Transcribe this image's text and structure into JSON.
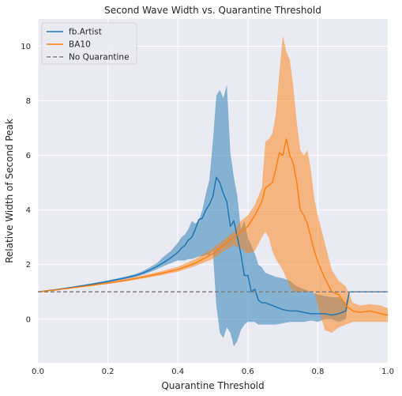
{
  "chart_data": {
    "type": "line",
    "title": "Second Wave Width vs. Quarantine Threshold",
    "xlabel": "Quarantine Threshold",
    "ylabel": "Relative Width of Second Peak",
    "xlim": [
      0.0,
      1.0
    ],
    "ylim": [
      -1.6,
      11.0
    ],
    "xticks": [
      "0.0",
      "0.2",
      "0.4",
      "0.6",
      "0.8",
      "1.0"
    ],
    "yticks": [
      "0",
      "2",
      "4",
      "6",
      "8",
      "10"
    ],
    "grid": true,
    "legend_position": "top-left",
    "background": "#eaeaf2",
    "series": [
      {
        "name": "fb.Artist",
        "color": "#1f77b4",
        "x": [
          0.0,
          0.05,
          0.1,
          0.15,
          0.2,
          0.25,
          0.28,
          0.3,
          0.32,
          0.34,
          0.36,
          0.38,
          0.4,
          0.41,
          0.42,
          0.43,
          0.44,
          0.45,
          0.46,
          0.47,
          0.48,
          0.49,
          0.5,
          0.51,
          0.52,
          0.53,
          0.54,
          0.55,
          0.56,
          0.57,
          0.58,
          0.59,
          0.6,
          0.61,
          0.62,
          0.63,
          0.64,
          0.65,
          0.66,
          0.68,
          0.7,
          0.72,
          0.74,
          0.76,
          0.78,
          0.8,
          0.82,
          0.84,
          0.86,
          0.88,
          0.89,
          0.9,
          0.95,
          1.0
        ],
        "y": [
          1.0,
          1.08,
          1.17,
          1.27,
          1.38,
          1.51,
          1.6,
          1.69,
          1.8,
          1.93,
          2.08,
          2.25,
          2.45,
          2.6,
          2.7,
          2.9,
          3.0,
          3.3,
          3.65,
          3.7,
          4.0,
          4.2,
          4.5,
          5.2,
          5.0,
          4.6,
          4.3,
          3.4,
          3.6,
          3.0,
          2.4,
          1.6,
          1.6,
          1.0,
          1.1,
          0.7,
          0.6,
          0.6,
          0.55,
          0.45,
          0.35,
          0.3,
          0.3,
          0.25,
          0.2,
          0.2,
          0.2,
          0.15,
          0.2,
          0.3,
          1.0,
          1.0,
          1.0,
          1.0
        ],
        "lower": [
          1.0,
          1.07,
          1.15,
          1.25,
          1.35,
          1.47,
          1.55,
          1.63,
          1.72,
          1.83,
          1.95,
          2.05,
          2.15,
          2.15,
          2.15,
          2.2,
          2.2,
          2.25,
          2.3,
          2.3,
          2.35,
          2.35,
          2.5,
          0.5,
          -0.5,
          -0.7,
          -0.3,
          -0.5,
          -1.0,
          -0.8,
          -0.4,
          -0.2,
          -0.1,
          -0.1,
          -0.1,
          -0.2,
          -0.2,
          -0.2,
          -0.2,
          -0.2,
          -0.15,
          -0.1,
          -0.1,
          -0.1,
          -0.05,
          -0.1,
          0.0,
          0.0,
          -0.1,
          0.0,
          1.0,
          1.0,
          1.0,
          1.0
        ],
        "upper": [
          1.0,
          1.09,
          1.19,
          1.3,
          1.42,
          1.56,
          1.66,
          1.76,
          1.9,
          2.05,
          2.3,
          2.5,
          2.8,
          3.0,
          3.1,
          3.3,
          3.6,
          3.5,
          3.6,
          4.0,
          4.6,
          5.1,
          6.5,
          8.2,
          8.4,
          8.1,
          8.6,
          6.1,
          5.2,
          4.5,
          3.3,
          3.6,
          3.0,
          2.7,
          2.4,
          2.0,
          1.9,
          1.7,
          1.65,
          1.55,
          1.5,
          1.4,
          1.2,
          1.1,
          1.0,
          0.9,
          0.85,
          0.8,
          0.8,
          0.6,
          1.0,
          1.0,
          1.0,
          1.0
        ]
      },
      {
        "name": "BA10",
        "color": "#ff7f0e",
        "x": [
          0.0,
          0.05,
          0.1,
          0.15,
          0.2,
          0.25,
          0.3,
          0.35,
          0.4,
          0.45,
          0.5,
          0.53,
          0.56,
          0.58,
          0.6,
          0.62,
          0.64,
          0.65,
          0.66,
          0.67,
          0.68,
          0.69,
          0.7,
          0.71,
          0.72,
          0.73,
          0.74,
          0.75,
          0.76,
          0.77,
          0.78,
          0.79,
          0.8,
          0.82,
          0.84,
          0.86,
          0.88,
          0.9,
          0.92,
          0.95,
          0.98,
          1.0
        ],
        "y": [
          1.0,
          1.07,
          1.15,
          1.23,
          1.32,
          1.42,
          1.54,
          1.67,
          1.82,
          2.05,
          2.4,
          2.7,
          3.0,
          3.2,
          3.4,
          3.8,
          4.3,
          4.8,
          4.9,
          5.0,
          5.5,
          6.1,
          6.0,
          6.6,
          6.0,
          5.7,
          5.0,
          4.0,
          3.8,
          3.5,
          3.0,
          2.5,
          2.1,
          1.5,
          1.0,
          0.9,
          0.5,
          0.3,
          0.25,
          0.3,
          0.2,
          0.15
        ],
        "lower": [
          1.0,
          1.06,
          1.13,
          1.21,
          1.29,
          1.38,
          1.49,
          1.6,
          1.74,
          1.95,
          2.2,
          2.5,
          2.7,
          2.6,
          2.4,
          2.5,
          3.0,
          3.2,
          3.0,
          2.5,
          2.2,
          2.0,
          1.8,
          1.5,
          1.2,
          1.0,
          1.0,
          1.0,
          1.0,
          1.0,
          1.0,
          1.0,
          0.5,
          -0.4,
          -0.5,
          -0.3,
          -0.2,
          -0.1,
          -0.1,
          -0.1,
          -0.1,
          -0.1
        ],
        "upper": [
          1.0,
          1.08,
          1.17,
          1.26,
          1.36,
          1.47,
          1.6,
          1.75,
          1.92,
          2.2,
          2.6,
          2.9,
          3.2,
          3.6,
          3.8,
          4.2,
          4.8,
          6.5,
          6.6,
          6.8,
          7.5,
          9.0,
          10.4,
          9.8,
          9.5,
          8.5,
          7.2,
          6.2,
          6.0,
          6.2,
          5.5,
          4.4,
          3.8,
          2.8,
          1.8,
          1.4,
          1.2,
          0.6,
          0.5,
          0.55,
          0.5,
          0.4
        ]
      },
      {
        "name": "No Quarantine",
        "color": "#808080",
        "dashed": true,
        "x": [
          0.0,
          1.0
        ],
        "y": [
          1.0,
          1.0
        ]
      }
    ]
  }
}
